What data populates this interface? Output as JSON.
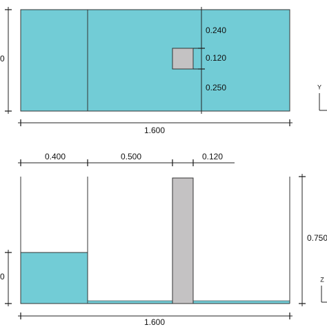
{
  "plan_view": {
    "height_label": "0",
    "right_dimensions": [
      "0.240",
      "0.120",
      "0.250"
    ],
    "length": "1.600",
    "axis": "Y"
  },
  "elevation_view": {
    "top_dimensions": [
      "0.400",
      "0.500",
      "0.120"
    ],
    "length": "1.600",
    "height": "0.750",
    "water_depth_label": "0",
    "axis": "Z"
  }
}
